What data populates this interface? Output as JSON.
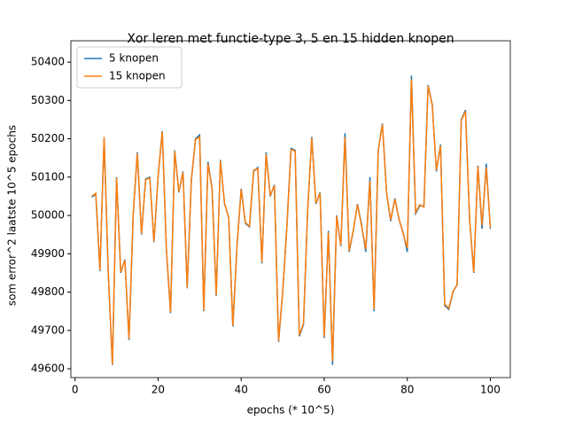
{
  "chart_data": {
    "type": "line",
    "title": "Xor leren met functie-type 3, 5 en 15 hidden knopen",
    "xlabel": "epochs (* 10^5)",
    "ylabel": "som error^2 laatste 10^5 epochs",
    "x": [
      4,
      5,
      6,
      7,
      8,
      9,
      10,
      11,
      12,
      13,
      14,
      15,
      16,
      17,
      18,
      19,
      20,
      21,
      22,
      23,
      24,
      25,
      26,
      27,
      28,
      29,
      30,
      31,
      32,
      33,
      34,
      35,
      36,
      37,
      38,
      39,
      40,
      41,
      42,
      43,
      44,
      45,
      46,
      47,
      48,
      49,
      50,
      51,
      52,
      53,
      54,
      55,
      56,
      57,
      58,
      59,
      60,
      61,
      62,
      63,
      64,
      65,
      66,
      67,
      68,
      69,
      70,
      71,
      72,
      73,
      74,
      75,
      76,
      77,
      78,
      79,
      80,
      81,
      82,
      83,
      84,
      85,
      86,
      87,
      88,
      89,
      90,
      91,
      92,
      93,
      94,
      95,
      96,
      97,
      98,
      99,
      100
    ],
    "series": [
      {
        "name": "5 knopen",
        "color": "#1f77b4",
        "values": [
          50048,
          50055,
          49855,
          50200,
          49850,
          49610,
          50100,
          49850,
          49885,
          49675,
          50000,
          50165,
          49950,
          50095,
          50100,
          49930,
          50100,
          50220,
          49910,
          49745,
          50170,
          50060,
          50115,
          49810,
          50090,
          50200,
          50210,
          49750,
          50140,
          50070,
          49790,
          50145,
          50030,
          49995,
          49710,
          49920,
          50070,
          49980,
          49970,
          50115,
          50125,
          49875,
          50165,
          50050,
          50080,
          49670,
          49800,
          49970,
          50175,
          50170,
          49685,
          49715,
          50010,
          50205,
          50030,
          50060,
          49680,
          49960,
          49610,
          50000,
          49920,
          50215,
          49905,
          49960,
          50030,
          49975,
          49905,
          50100,
          49750,
          50170,
          50240,
          50060,
          49985,
          50045,
          49990,
          49955,
          49905,
          50365,
          50005,
          50025,
          50025,
          50340,
          50290,
          50115,
          50185,
          49765,
          49755,
          49800,
          49820,
          50250,
          50275,
          49990,
          49850,
          50130,
          49965,
          50135,
          49965
        ]
      },
      {
        "name": "15 knopen",
        "color": "#ff7f0e",
        "values": [
          50050,
          50058,
          49858,
          50205,
          49852,
          49612,
          50098,
          49852,
          49883,
          49678,
          50003,
          50162,
          49952,
          50093,
          50098,
          49932,
          50102,
          50218,
          49912,
          49748,
          50168,
          50062,
          50113,
          49812,
          50092,
          50198,
          50205,
          49752,
          50135,
          50068,
          49792,
          50142,
          50032,
          49993,
          49712,
          49922,
          50068,
          49982,
          49972,
          50118,
          50122,
          49878,
          50160,
          50052,
          50078,
          49672,
          49802,
          49968,
          50172,
          50168,
          49688,
          49718,
          50012,
          50202,
          50032,
          50058,
          49683,
          49955,
          49620,
          49998,
          49922,
          50205,
          49908,
          49962,
          50028,
          49972,
          49912,
          50090,
          49755,
          50168,
          50238,
          50062,
          49988,
          50043,
          49992,
          49952,
          49915,
          50355,
          50008,
          50028,
          50022,
          50338,
          50288,
          50118,
          50182,
          49768,
          49758,
          49802,
          49818,
          50248,
          50272,
          49992,
          49852,
          50128,
          49975,
          50125,
          49968
        ]
      }
    ],
    "xlim": [
      -1,
      104.8
    ],
    "ylim": [
      49577,
      50428
    ],
    "xticks": [
      0,
      20,
      40,
      60,
      80,
      100
    ],
    "yticks": [
      49600,
      49700,
      49800,
      49900,
      50000,
      50100,
      50200,
      50300,
      50400
    ],
    "legend": "upper left"
  }
}
